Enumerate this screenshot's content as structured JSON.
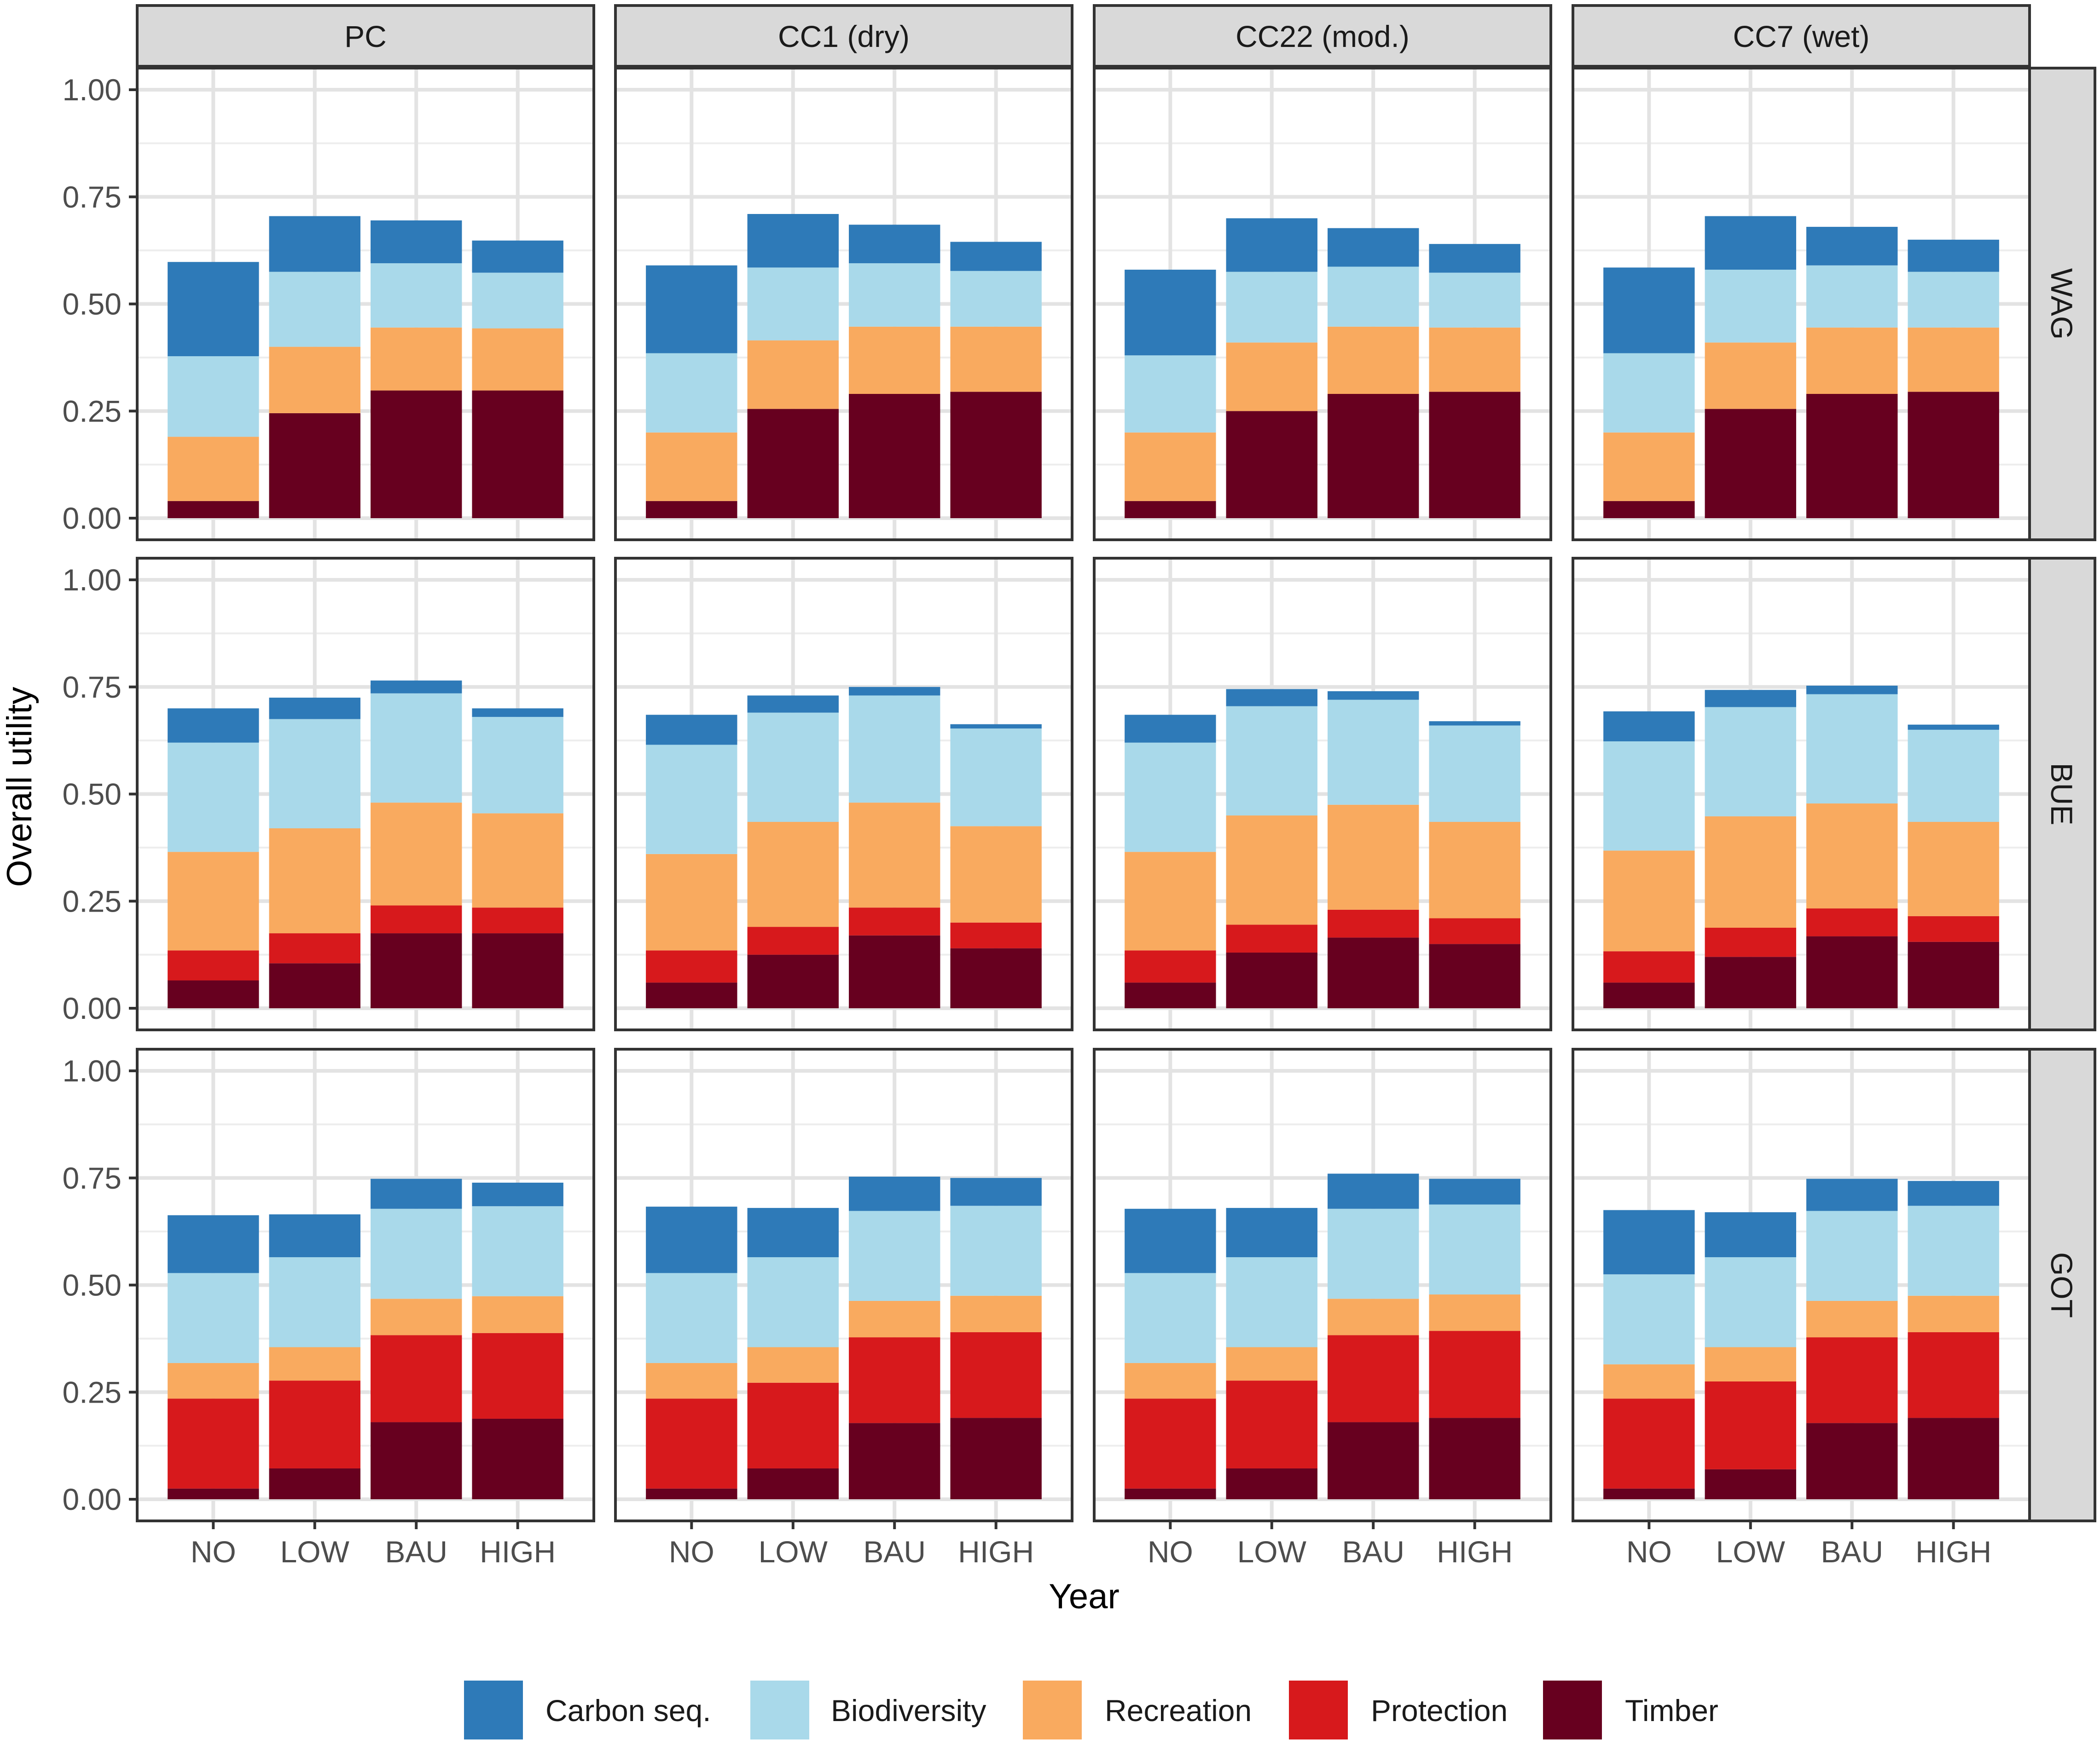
{
  "chart_data": {
    "type": "bar",
    "stacked": true,
    "xlabel": "Year",
    "ylabel": "Overall utility",
    "ylim": [
      0,
      1
    ],
    "yticks": [
      "0.00",
      "0.25",
      "0.50",
      "0.75",
      "1.00"
    ],
    "ytick_values": [
      0,
      0.25,
      0.5,
      0.75,
      1.0
    ],
    "categories": [
      "NO",
      "LOW",
      "BAU",
      "HIGH"
    ],
    "columns": [
      "PC",
      "CC1 (dry)",
      "CC22 (mod.)",
      "CC7 (wet)"
    ],
    "rows": [
      "WAG",
      "BUE",
      "GOT"
    ],
    "stack_order": [
      "Timber",
      "Protection",
      "Recreation",
      "Biodiversity",
      "Carbon seq."
    ],
    "legend": [
      {
        "name": "Carbon seq.",
        "color": "#2E7AB8"
      },
      {
        "name": "Biodiversity",
        "color": "#A9D9EA"
      },
      {
        "name": "Recreation",
        "color": "#F9AA5F"
      },
      {
        "name": "Protection",
        "color": "#D7191C"
      },
      {
        "name": "Timber",
        "color": "#67001F"
      }
    ],
    "panels": {
      "WAG": {
        "PC": {
          "Timber": [
            0.04,
            0.245,
            0.298,
            0.298
          ],
          "Protection": [
            0,
            0,
            0,
            0
          ],
          "Recreation": [
            0.15,
            0.155,
            0.147,
            0.145
          ],
          "Biodiversity": [
            0.188,
            0.175,
            0.15,
            0.13
          ],
          "Carbon seq.": [
            0.22,
            0.13,
            0.1,
            0.075
          ]
        },
        "CC1 (dry)": {
          "Timber": [
            0.04,
            0.255,
            0.29,
            0.295
          ],
          "Protection": [
            0,
            0,
            0,
            0
          ],
          "Recreation": [
            0.16,
            0.16,
            0.157,
            0.152
          ],
          "Biodiversity": [
            0.185,
            0.17,
            0.148,
            0.13
          ],
          "Carbon seq.": [
            0.205,
            0.125,
            0.09,
            0.068
          ]
        },
        "CC22 (mod.)": {
          "Timber": [
            0.04,
            0.25,
            0.29,
            0.295
          ],
          "Protection": [
            0,
            0,
            0,
            0
          ],
          "Recreation": [
            0.16,
            0.16,
            0.157,
            0.15
          ],
          "Biodiversity": [
            0.18,
            0.165,
            0.14,
            0.128
          ],
          "Carbon seq.": [
            0.2,
            0.125,
            0.09,
            0.067
          ]
        },
        "CC7 (wet)": {
          "Timber": [
            0.04,
            0.255,
            0.29,
            0.295
          ],
          "Protection": [
            0,
            0,
            0,
            0
          ],
          "Recreation": [
            0.16,
            0.155,
            0.155,
            0.15
          ],
          "Biodiversity": [
            0.185,
            0.17,
            0.145,
            0.13
          ],
          "Carbon seq.": [
            0.2,
            0.125,
            0.09,
            0.075
          ]
        }
      },
      "BUE": {
        "PC": {
          "Timber": [
            0.065,
            0.105,
            0.175,
            0.175
          ],
          "Protection": [
            0.07,
            0.07,
            0.065,
            0.06
          ],
          "Recreation": [
            0.23,
            0.245,
            0.24,
            0.22
          ],
          "Biodiversity": [
            0.255,
            0.255,
            0.255,
            0.225
          ],
          "Carbon seq.": [
            0.08,
            0.05,
            0.03,
            0.02
          ]
        },
        "CC1 (dry)": {
          "Timber": [
            0.06,
            0.125,
            0.17,
            0.14
          ],
          "Protection": [
            0.075,
            0.065,
            0.065,
            0.06
          ],
          "Recreation": [
            0.225,
            0.245,
            0.245,
            0.225
          ],
          "Biodiversity": [
            0.255,
            0.255,
            0.25,
            0.228
          ],
          "Carbon seq.": [
            0.07,
            0.04,
            0.02,
            0.01
          ]
        },
        "CC22 (mod.)": {
          "Timber": [
            0.06,
            0.13,
            0.165,
            0.15
          ],
          "Protection": [
            0.075,
            0.065,
            0.065,
            0.06
          ],
          "Recreation": [
            0.23,
            0.255,
            0.245,
            0.225
          ],
          "Biodiversity": [
            0.255,
            0.255,
            0.245,
            0.225
          ],
          "Carbon seq.": [
            0.065,
            0.04,
            0.02,
            0.01
          ]
        },
        "CC7 (wet)": {
          "Timber": [
            0.06,
            0.12,
            0.168,
            0.155
          ],
          "Protection": [
            0.073,
            0.068,
            0.065,
            0.06
          ],
          "Recreation": [
            0.235,
            0.26,
            0.245,
            0.22
          ],
          "Biodiversity": [
            0.255,
            0.255,
            0.255,
            0.215
          ],
          "Carbon seq.": [
            0.07,
            0.04,
            0.02,
            0.012
          ]
        }
      },
      "GOT": {
        "PC": {
          "Timber": [
            0.025,
            0.072,
            0.18,
            0.188
          ],
          "Protection": [
            0.21,
            0.205,
            0.203,
            0.2
          ],
          "Recreation": [
            0.083,
            0.078,
            0.085,
            0.086
          ],
          "Biodiversity": [
            0.21,
            0.21,
            0.21,
            0.21
          ],
          "Carbon seq.": [
            0.135,
            0.1,
            0.07,
            0.055
          ]
        },
        "CC1 (dry)": {
          "Timber": [
            0.025,
            0.072,
            0.178,
            0.19
          ],
          "Protection": [
            0.21,
            0.2,
            0.2,
            0.2
          ],
          "Recreation": [
            0.083,
            0.083,
            0.085,
            0.085
          ],
          "Biodiversity": [
            0.21,
            0.21,
            0.21,
            0.21
          ],
          "Carbon seq.": [
            0.155,
            0.115,
            0.08,
            0.065
          ]
        },
        "CC22 (mod.)": {
          "Timber": [
            0.025,
            0.072,
            0.18,
            0.19
          ],
          "Protection": [
            0.21,
            0.205,
            0.203,
            0.203
          ],
          "Recreation": [
            0.083,
            0.078,
            0.085,
            0.085
          ],
          "Biodiversity": [
            0.21,
            0.21,
            0.21,
            0.21
          ],
          "Carbon seq.": [
            0.15,
            0.115,
            0.082,
            0.06
          ]
        },
        "CC7 (wet)": {
          "Timber": [
            0.025,
            0.07,
            0.178,
            0.19
          ],
          "Protection": [
            0.21,
            0.205,
            0.2,
            0.2
          ],
          "Recreation": [
            0.08,
            0.08,
            0.085,
            0.085
          ],
          "Biodiversity": [
            0.21,
            0.21,
            0.21,
            0.21
          ],
          "Carbon seq.": [
            0.15,
            0.105,
            0.075,
            0.058
          ]
        }
      }
    }
  }
}
